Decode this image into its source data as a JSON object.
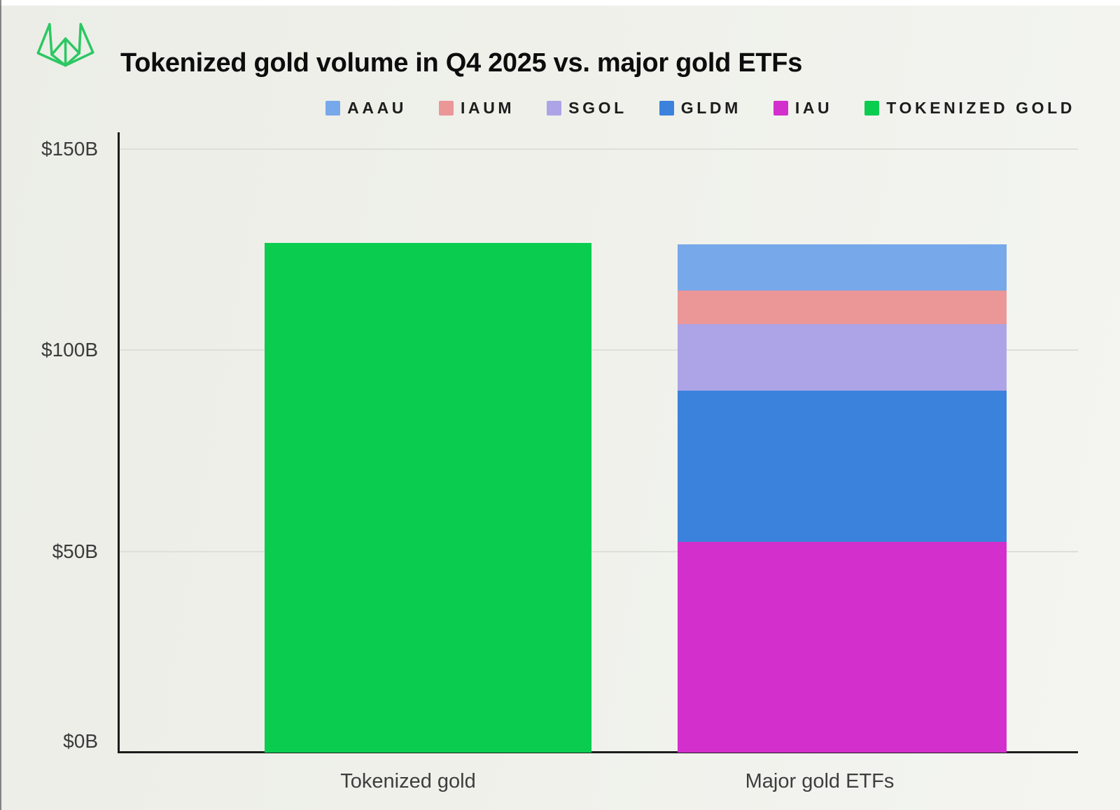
{
  "page": {
    "background": "#EFF0EB"
  },
  "header": {
    "logo": "origami-lotus-logo",
    "title": "Tokenized gold volume in Q4 2025 vs. major gold ETFs"
  },
  "legend": [
    {
      "label": "AAAU",
      "color": "#77A8EA"
    },
    {
      "label": "IAUM",
      "color": "#EB9697"
    },
    {
      "label": "SGOL",
      "color": "#ACA4E6"
    },
    {
      "label": "GLDM",
      "color": "#3A82DC"
    },
    {
      "label": "IAU",
      "color": "#D32FCD"
    },
    {
      "label": "TOKENIZED GOLD",
      "color": "#0ACD50"
    }
  ],
  "chart_data": {
    "type": "bar",
    "stacked": true,
    "title": "Tokenized gold volume in Q4 2025 vs. major gold ETFs",
    "categories": [
      "Tokenized gold",
      "Major gold ETFs"
    ],
    "series": [
      {
        "name": "AAAU",
        "color": "#77A8EA",
        "values": [
          0,
          11.5
        ]
      },
      {
        "name": "IAUM",
        "color": "#EB9697",
        "values": [
          0,
          8.4
        ]
      },
      {
        "name": "SGOL",
        "color": "#ACA4E6",
        "values": [
          0,
          16.5
        ]
      },
      {
        "name": "GLDM",
        "color": "#3A82DC",
        "values": [
          0,
          37.6
        ]
      },
      {
        "name": "IAU",
        "color": "#D32FCD",
        "values": [
          0,
          52.4
        ]
      },
      {
        "name": "TOKENIZED GOLD",
        "color": "#0ACD50",
        "values": [
          126.7,
          0
        ]
      }
    ],
    "stack_order_bottom_to_top": [
      "TOKENIZED GOLD",
      "IAU",
      "GLDM",
      "SGOL",
      "IAUM",
      "AAAU"
    ],
    "xlabel": "",
    "ylabel": "",
    "ylim": [
      0,
      150
    ],
    "yticks": [
      {
        "value": 150,
        "label": "$150B"
      },
      {
        "value": 100,
        "label": "$100B"
      },
      {
        "value": 50,
        "label": "$50B"
      },
      {
        "value": 0,
        "label": "$0B"
      }
    ],
    "units": "billions USD",
    "grid": true,
    "legend_position": "top-right"
  }
}
